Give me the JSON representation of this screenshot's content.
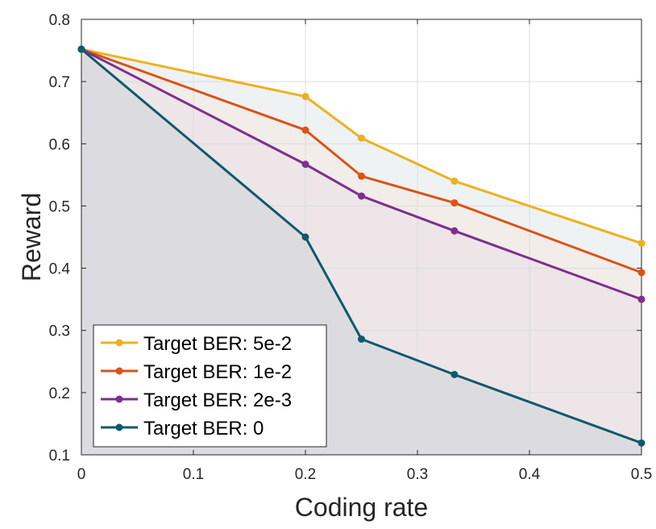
{
  "chart_data": {
    "type": "line",
    "title": "",
    "xlabel": "Coding rate",
    "ylabel": "Reward",
    "xlim": [
      0,
      0.5
    ],
    "ylim": [
      0.1,
      0.8
    ],
    "grid": true,
    "legend_position": "bottom-left",
    "x_ticks": [
      0,
      0.1,
      0.2,
      0.3,
      0.4,
      0.5
    ],
    "x_tick_labels": [
      "0",
      "0.1",
      "0.2",
      "0.3",
      "0.4",
      "0.5"
    ],
    "y_ticks": [
      0.1,
      0.2,
      0.3,
      0.4,
      0.5,
      0.6,
      0.7,
      0.8
    ],
    "y_tick_labels": [
      "0.1",
      "0.2",
      "0.3",
      "0.4",
      "0.5",
      "0.6",
      "0.7",
      "0.8"
    ],
    "x": [
      0,
      0.2,
      0.25,
      0.333,
      0.5
    ],
    "series": [
      {
        "name": "Target BER: 5e-2",
        "color": "#EDB120",
        "fill": "#EEF2F3",
        "values": [
          0.752,
          0.676,
          0.609,
          0.54,
          0.44
        ]
      },
      {
        "name": "Target BER: 1e-2",
        "color": "#D95319",
        "fill": "#F2EDE8",
        "values": [
          0.752,
          0.622,
          0.548,
          0.505,
          0.393
        ]
      },
      {
        "name": "Target BER: 2e-3",
        "color": "#7E2F8E",
        "fill": "#EDE5E8",
        "values": [
          0.752,
          0.567,
          0.516,
          0.46,
          0.35
        ]
      },
      {
        "name": "Target BER: 0",
        "color": "#0F5A6A",
        "fill": "#DCDCE0",
        "values": [
          0.752,
          0.45,
          0.286,
          0.229,
          0.119
        ]
      }
    ]
  }
}
